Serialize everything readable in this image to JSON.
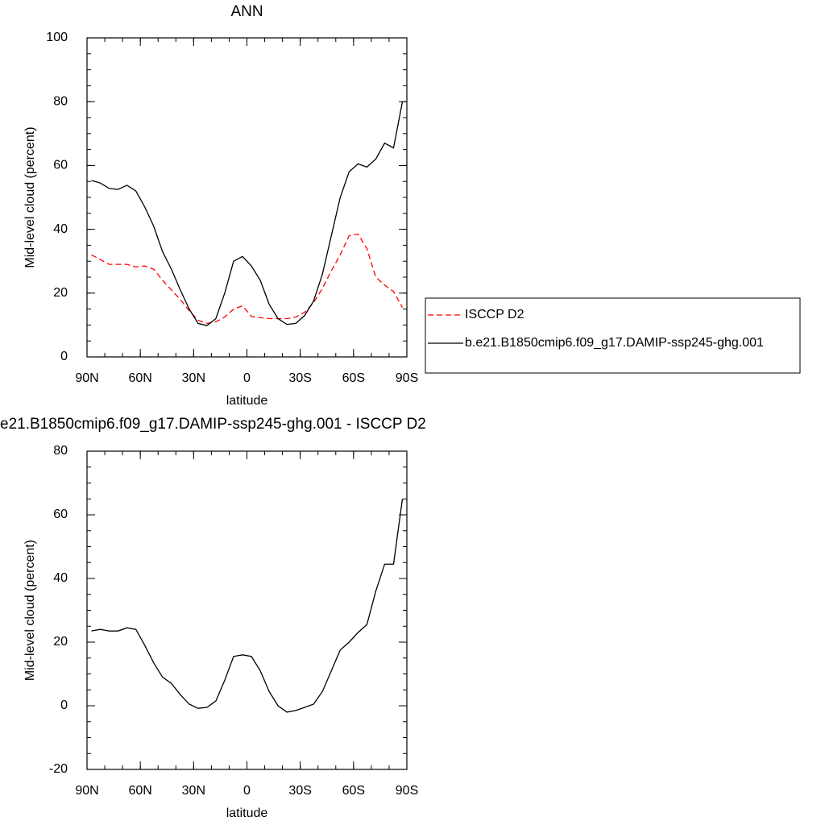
{
  "chart_data": [
    {
      "type": "line",
      "title": "ANN",
      "xlabel": "latitude",
      "ylabel": "Mid-level cloud (percent)",
      "xlim": [
        90,
        -90
      ],
      "xticks": [
        {
          "value": 90,
          "label": "90N"
        },
        {
          "value": 60,
          "label": "60N"
        },
        {
          "value": 30,
          "label": "30N"
        },
        0,
        {
          "value": -30,
          "label": "30S"
        },
        {
          "value": -60,
          "label": "60S"
        },
        {
          "value": -90,
          "label": "90S"
        }
      ],
      "ylim": [
        0,
        100
      ],
      "yticks": [
        0,
        20,
        40,
        60,
        80,
        100
      ],
      "x": [
        87.5,
        82.5,
        77.5,
        72.5,
        67.5,
        62.5,
        57.5,
        52.5,
        47.5,
        42.5,
        37.5,
        32.5,
        27.5,
        22.5,
        17.5,
        12.5,
        7.5,
        2.5,
        -2.5,
        -7.5,
        -12.5,
        -17.5,
        -22.5,
        -27.5,
        -32.5,
        -37.5,
        -42.5,
        -47.5,
        -52.5,
        -57.5,
        -62.5,
        -67.5,
        -72.5,
        -77.5,
        -82.5,
        -87.5
      ],
      "series": [
        {
          "name": "ISCCP D2",
          "color": "#ff0000",
          "dashed": true,
          "values": [
            32,
            30.5,
            29,
            29,
            29,
            28.2,
            28.5,
            27.5,
            24,
            21,
            18,
            14.5,
            11.5,
            10.5,
            11,
            12.5,
            15,
            16,
            12.7,
            12.3,
            12,
            12,
            12,
            12.5,
            14,
            17,
            21.5,
            27,
            32,
            38,
            38.5,
            34,
            25,
            22.5,
            20.5,
            15.5
          ]
        },
        {
          "name": "b.e21.B1850cmip6.f09_g17.DAMIP-ssp245-ghg.001",
          "color": "#000000",
          "dashed": false,
          "values": [
            55.3,
            54.5,
            52.8,
            52.5,
            53.8,
            52,
            47,
            41,
            33,
            27.5,
            21,
            15,
            10.5,
            9.8,
            12,
            20,
            30,
            31.5,
            28.5,
            24,
            16.5,
            12,
            10.2,
            10.5,
            13,
            17.5,
            26,
            38,
            50,
            58,
            60.5,
            59.5,
            62,
            67,
            65.5,
            80
          ]
        }
      ]
    },
    {
      "type": "line",
      "title": "e21.B1850cmip6.f09_g17.DAMIP-ssp245-ghg.001 - ISCCP D2",
      "xlabel": "latitude",
      "ylabel": "Mid-level cloud (percent)",
      "xlim": [
        90,
        -90
      ],
      "xticks": [
        {
          "value": 90,
          "label": "90N"
        },
        {
          "value": 60,
          "label": "60N"
        },
        {
          "value": 30,
          "label": "30N"
        },
        0,
        {
          "value": -30,
          "label": "30S"
        },
        {
          "value": -60,
          "label": "60S"
        },
        {
          "value": -90,
          "label": "90S"
        }
      ],
      "ylim": [
        -20,
        80
      ],
      "yticks": [
        -20,
        0,
        20,
        40,
        60,
        80
      ],
      "x": [
        87.5,
        82.5,
        77.5,
        72.5,
        67.5,
        62.5,
        57.5,
        52.5,
        47.5,
        42.5,
        37.5,
        32.5,
        27.5,
        22.5,
        17.5,
        12.5,
        7.5,
        2.5,
        -2.5,
        -7.5,
        -12.5,
        -17.5,
        -22.5,
        -27.5,
        -32.5,
        -37.5,
        -42.5,
        -47.5,
        -52.5,
        -57.5,
        -62.5,
        -67.5,
        -72.5,
        -77.5,
        -82.5,
        -87.5
      ],
      "series": [
        {
          "color": "#000000",
          "dashed": false,
          "values": [
            23.5,
            24,
            23.5,
            23.5,
            24.5,
            24,
            19,
            13.5,
            9,
            7,
            3.5,
            0.5,
            -0.8,
            -0.5,
            1.5,
            8,
            15.5,
            16,
            15.5,
            11,
            4.5,
            0,
            -2,
            -1.5,
            -0.5,
            0.5,
            4.5,
            11,
            17.5,
            20,
            23,
            25.5,
            36,
            44.5,
            44.5,
            65
          ]
        }
      ]
    }
  ]
}
